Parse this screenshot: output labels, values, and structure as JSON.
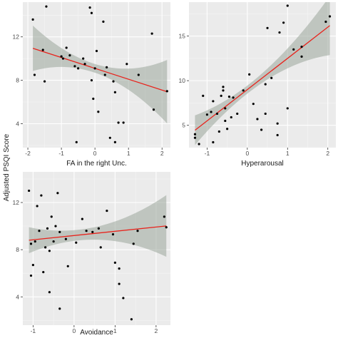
{
  "figure": {
    "ylabel": "Adjusted PSQI Score"
  },
  "chart_data": [
    {
      "type": "scatter",
      "xlabel": "FA in the right Unc.",
      "xlim": [
        -2.15,
        2.25
      ],
      "ylim": [
        1.8,
        15.2
      ],
      "xticks": [
        -2,
        -1,
        0,
        1,
        2
      ],
      "yticks": [
        4,
        8,
        12
      ],
      "points": [
        [
          -1.85,
          13.6
        ],
        [
          -1.8,
          8.5
        ],
        [
          -1.55,
          10.8
        ],
        [
          -1.5,
          7.9
        ],
        [
          -1.45,
          14.8
        ],
        [
          -1.0,
          10.2
        ],
        [
          -0.95,
          10.0
        ],
        [
          -0.85,
          11.0
        ],
        [
          -0.75,
          10.3
        ],
        [
          -0.6,
          9.3
        ],
        [
          -0.55,
          2.3
        ],
        [
          -0.5,
          9.1
        ],
        [
          -0.35,
          10.0
        ],
        [
          -0.3,
          9.5
        ],
        [
          -0.15,
          14.7
        ],
        [
          -0.1,
          14.2
        ],
        [
          -0.1,
          8.0
        ],
        [
          -0.05,
          6.3
        ],
        [
          0.0,
          9.1
        ],
        [
          0.05,
          10.7
        ],
        [
          0.1,
          5.1
        ],
        [
          0.25,
          13.4
        ],
        [
          0.3,
          8.5
        ],
        [
          0.35,
          9.2
        ],
        [
          0.45,
          2.7
        ],
        [
          0.55,
          7.9
        ],
        [
          0.6,
          2.3
        ],
        [
          0.6,
          6.9
        ],
        [
          0.7,
          4.1
        ],
        [
          0.85,
          4.1
        ],
        [
          0.95,
          9.5
        ],
        [
          1.3,
          8.5
        ],
        [
          1.7,
          12.3
        ],
        [
          1.75,
          5.3
        ],
        [
          2.15,
          7.0
        ]
      ],
      "fit": {
        "intercept": 9.1,
        "slope": -1.0
      },
      "band_se": {
        "base": 0.4,
        "scale": 0.5
      }
    },
    {
      "type": "scatter",
      "xlabel": "Hyperarousal",
      "xlim": [
        -1.45,
        2.2
      ],
      "ylim": [
        2.5,
        18.8
      ],
      "xticks": [
        -1,
        0,
        1,
        2
      ],
      "yticks": [
        5,
        10,
        15
      ],
      "points": [
        [
          -1.3,
          3.6
        ],
        [
          -1.3,
          4.0
        ],
        [
          -1.2,
          2.9
        ],
        [
          -1.1,
          8.3
        ],
        [
          -1.0,
          6.2
        ],
        [
          -0.9,
          6.5
        ],
        [
          -0.85,
          3.1
        ],
        [
          -0.85,
          7.7
        ],
        [
          -0.75,
          6.3
        ],
        [
          -0.7,
          4.3
        ],
        [
          -0.65,
          8.3
        ],
        [
          -0.6,
          8.9
        ],
        [
          -0.6,
          9.3
        ],
        [
          -0.55,
          5.5
        ],
        [
          -0.55,
          6.9
        ],
        [
          -0.5,
          4.6
        ],
        [
          -0.45,
          8.2
        ],
        [
          -0.4,
          5.9
        ],
        [
          -0.35,
          8.1
        ],
        [
          -0.25,
          6.3
        ],
        [
          -0.1,
          8.9
        ],
        [
          0.05,
          10.7
        ],
        [
          0.15,
          7.4
        ],
        [
          0.25,
          5.7
        ],
        [
          0.35,
          4.5
        ],
        [
          0.45,
          6.3
        ],
        [
          0.45,
          9.6
        ],
        [
          0.5,
          15.9
        ],
        [
          0.6,
          10.3
        ],
        [
          0.75,
          5.2
        ],
        [
          0.75,
          3.9
        ],
        [
          0.8,
          15.4
        ],
        [
          0.9,
          16.5
        ],
        [
          1.0,
          6.9
        ],
        [
          1.0,
          18.4
        ],
        [
          1.15,
          13.5
        ],
        [
          1.35,
          13.8
        ],
        [
          1.35,
          12.7
        ],
        [
          1.95,
          16.6
        ],
        [
          2.05,
          17.2
        ]
      ],
      "fit": {
        "intercept": 9.0,
        "slope": 3.5
      },
      "band_se": {
        "base": 0.45,
        "scale": 0.55
      }
    },
    {
      "type": "scatter",
      "xlabel": "Avoidance",
      "xlim": [
        -1.25,
        2.35
      ],
      "ylim": [
        1.6,
        14.6
      ],
      "xticks": [
        -1,
        0,
        1,
        2
      ],
      "yticks": [
        4,
        8,
        12
      ],
      "points": [
        [
          -1.1,
          13.0
        ],
        [
          -1.05,
          8.5
        ],
        [
          -1.05,
          5.8
        ],
        [
          -1.0,
          6.7
        ],
        [
          -0.95,
          8.7
        ],
        [
          -0.9,
          11.7
        ],
        [
          -0.85,
          9.6
        ],
        [
          -0.8,
          12.6
        ],
        [
          -0.75,
          6.1
        ],
        [
          -0.7,
          8.2
        ],
        [
          -0.65,
          9.8
        ],
        [
          -0.6,
          7.9
        ],
        [
          -0.6,
          4.4
        ],
        [
          -0.55,
          10.8
        ],
        [
          -0.5,
          8.7
        ],
        [
          -0.45,
          10.0
        ],
        [
          -0.4,
          12.8
        ],
        [
          -0.35,
          9.5
        ],
        [
          -0.35,
          3.0
        ],
        [
          -0.2,
          8.9
        ],
        [
          -0.15,
          6.6
        ],
        [
          0.05,
          8.6
        ],
        [
          0.2,
          10.6
        ],
        [
          0.3,
          9.6
        ],
        [
          0.45,
          9.5
        ],
        [
          0.6,
          9.8
        ],
        [
          0.65,
          8.2
        ],
        [
          0.8,
          11.3
        ],
        [
          0.95,
          9.3
        ],
        [
          1.0,
          6.9
        ],
        [
          1.1,
          5.1
        ],
        [
          1.1,
          6.4
        ],
        [
          1.2,
          3.9
        ],
        [
          1.4,
          2.1
        ],
        [
          1.45,
          8.5
        ],
        [
          1.55,
          9.6
        ],
        [
          2.2,
          10.8
        ],
        [
          2.25,
          9.9
        ]
      ],
      "fit": {
        "intercept": 9.2,
        "slope": 0.36
      },
      "band_se": {
        "base": 0.45,
        "scale": 0.42
      }
    }
  ]
}
